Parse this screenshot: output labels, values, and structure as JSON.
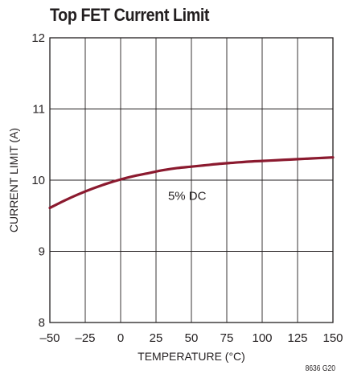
{
  "title": "Top FET Current Limit",
  "figure_id": "8636 G20",
  "chart_data": {
    "type": "line",
    "title": "Top FET Current Limit",
    "xlabel": "TEMPERATURE (°C)",
    "ylabel": "CURRENT LIMIT (A)",
    "xlim": [
      -50,
      150
    ],
    "ylim": [
      8,
      12
    ],
    "xticks": [
      -50,
      -25,
      0,
      25,
      50,
      75,
      100,
      125,
      150
    ],
    "xtick_labels": [
      "–50",
      "–25",
      "0",
      "25",
      "50",
      "75",
      "100",
      "125",
      "150"
    ],
    "yticks": [
      8,
      9,
      10,
      11,
      12
    ],
    "ytick_labels": [
      "8",
      "9",
      "10",
      "11",
      "12"
    ],
    "grid": true,
    "annotations": [
      {
        "text": "5% DC",
        "x": 47,
        "y": 9.78
      }
    ],
    "series": [
      {
        "color": "#8b1a2f",
        "x": [
          -50,
          -40,
          -30,
          -20,
          -10,
          0,
          10,
          20,
          30,
          40,
          50,
          60,
          70,
          80,
          90,
          100,
          110,
          120,
          130,
          140,
          150
        ],
        "y": [
          9.61,
          9.71,
          9.8,
          9.88,
          9.95,
          10.01,
          10.06,
          10.1,
          10.14,
          10.17,
          10.19,
          10.21,
          10.23,
          10.245,
          10.26,
          10.27,
          10.28,
          10.29,
          10.3,
          10.31,
          10.32
        ]
      }
    ]
  }
}
